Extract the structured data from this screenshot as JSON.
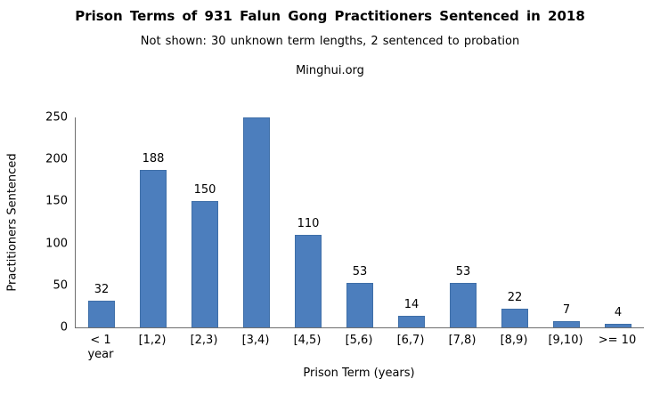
{
  "header": {
    "title": "Prison Terms of 931 Falun Gong Practitioners Sentenced in 2018",
    "subtitle": "Not shown: 30 unknown term lengths, 2 sentenced to probation",
    "source": "Minghui.org"
  },
  "chart_data": {
    "type": "bar",
    "title": "Prison Terms of 931 Falun Gong Practitioners Sentenced in 2018",
    "subtitle": "Not shown: 30 unknown term lengths, 2 sentenced to probation",
    "source": "Minghui.org",
    "xlabel": "Prison Term (years)",
    "ylabel": "Practitioners Sentenced",
    "categories": [
      "< 1 year",
      "[1,2)",
      "[2,3)",
      "[3,4)",
      "[4,5)",
      "[5,6)",
      "[6,7)",
      "[7,8)",
      "[8,9)",
      "[9,10)",
      ">= 10"
    ],
    "x_tick_lines": [
      [
        "< 1",
        "year"
      ],
      [
        "[1,2)"
      ],
      [
        "[2,3)"
      ],
      [
        "[3,4)"
      ],
      [
        "[4,5)"
      ],
      [
        "[5,6)"
      ],
      [
        "[6,7)"
      ],
      [
        "[7,8)"
      ],
      [
        "[8,9)"
      ],
      [
        "[9,10)"
      ],
      [
        ">= 10"
      ]
    ],
    "values": [
      32,
      188,
      150,
      250,
      110,
      53,
      14,
      53,
      22,
      7,
      4
    ],
    "data_labels": [
      "32",
      "188",
      "150",
      "",
      "110",
      "53",
      "14",
      "53",
      "22",
      "7",
      "4"
    ],
    "clipped_bar_index": 3,
    "notes": "The [3,4) bar reaches the top of the axis (250) and shows no data label; it is clipped at the axis maximum.",
    "ylim": [
      0,
      250
    ],
    "yticks": [
      0,
      50,
      100,
      150,
      200,
      250
    ],
    "grid": false,
    "legend": "none",
    "bar_color": "#4c7ebd",
    "bar_border_color": "#3f6fa8",
    "axis_color": "#6e6e6e",
    "text_color": "#000000",
    "background_color": "#ffffff"
  }
}
